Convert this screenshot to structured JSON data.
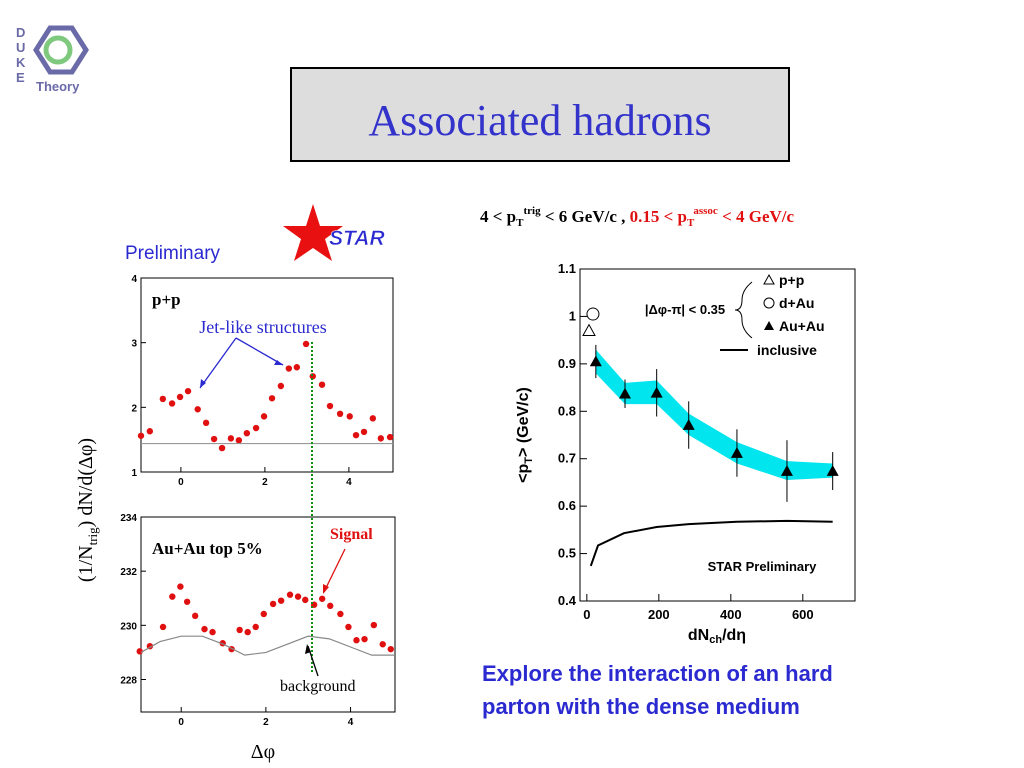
{
  "logo": {
    "letters": [
      "D",
      "U",
      "K",
      "E"
    ],
    "text": "Theory"
  },
  "title": "Associated hadrons",
  "star_label": "STAR",
  "preliminary": "Preliminary",
  "cut_label": {
    "left_main": "4 < p",
    "left_sub": "T",
    "left_sup": "trig",
    "left_rest": " < 6 GeV/c , ",
    "right_main": "0.15 < p",
    "right_sub": "T",
    "right_sup": "assoc",
    "right_rest": " < 4 GeV/c"
  },
  "left_ylabel": {
    "main": "(1/N",
    "sub": "trig",
    "rest": ") dN/d(Δφ)"
  },
  "left_xlabel": "Δφ",
  "conclusion": [
    "Explore the interaction of an hard",
    "parton with the dense medium"
  ],
  "chart_data": [
    {
      "type": "scatter",
      "annotations": [
        "p+p",
        "Jet-like structures"
      ],
      "xlim": [
        -0.95,
        5.05
      ],
      "ylim": [
        1,
        4
      ],
      "xticks": [
        0,
        2,
        4
      ],
      "yticks": [
        1,
        2,
        3,
        4
      ],
      "series": [
        {
          "color": "#e01010",
          "marker": "circle",
          "x": [
            -0.95,
            -0.74,
            -0.43,
            -0.21,
            -0.02,
            0.17,
            0.4,
            0.6,
            0.79,
            0.98,
            1.19,
            1.38,
            1.57,
            1.79,
            1.98,
            2.17,
            2.38,
            2.57,
            2.76,
            2.98,
            3.14,
            3.36,
            3.55,
            3.79,
            4.02,
            4.17,
            4.36,
            4.57,
            4.76,
            4.98
          ],
          "values": [
            1.56,
            1.63,
            2.13,
            2.06,
            2.16,
            2.25,
            1.97,
            1.76,
            1.51,
            1.37,
            1.52,
            1.49,
            1.6,
            1.68,
            1.86,
            2.14,
            2.33,
            2.6,
            2.62,
            2.98,
            2.48,
            2.35,
            2.02,
            1.9,
            1.86,
            1.57,
            1.62,
            1.83,
            1.52,
            1.54
          ]
        },
        {
          "color": "#999999",
          "marker": "line",
          "x": [
            -0.95,
            5.05
          ],
          "values": [
            1.44,
            1.44
          ]
        }
      ]
    },
    {
      "type": "scatter",
      "annotations": [
        "Au+Au top 5%",
        "Signal",
        "background"
      ],
      "xlim": [
        -0.95,
        5.05
      ],
      "ylim": [
        226.8,
        234
      ],
      "xticks": [
        0,
        2,
        4
      ],
      "yticks": [
        228,
        230,
        232,
        234
      ],
      "series": [
        {
          "color": "#e01010",
          "marker": "circle",
          "x": [
            -0.98,
            -0.74,
            -0.43,
            -0.21,
            -0.02,
            0.14,
            0.33,
            0.55,
            0.74,
            0.98,
            1.19,
            1.38,
            1.57,
            1.76,
            1.95,
            2.17,
            2.36,
            2.57,
            2.76,
            2.93,
            3.14,
            3.33,
            3.52,
            3.76,
            3.95,
            4.14,
            4.33,
            4.55,
            4.76,
            4.95
          ],
          "values": [
            229.04,
            229.23,
            229.94,
            231.06,
            231.43,
            230.87,
            230.35,
            229.86,
            229.75,
            229.34,
            229.12,
            229.83,
            229.75,
            229.94,
            230.42,
            230.79,
            230.91,
            231.13,
            231.06,
            230.94,
            230.76,
            230.98,
            230.72,
            230.42,
            229.94,
            229.45,
            229.49,
            230.01,
            229.3,
            229.12
          ]
        },
        {
          "color": "#888888",
          "marker": "line",
          "x": [
            -0.95,
            -0.5,
            0,
            0.5,
            1,
            1.5,
            2,
            2.5,
            3,
            3.5,
            4,
            4.5,
            5.05
          ],
          "values": [
            229.0,
            229.4,
            229.6,
            229.6,
            229.3,
            228.9,
            229.0,
            229.3,
            229.6,
            229.5,
            229.2,
            228.9,
            228.9
          ]
        }
      ]
    },
    {
      "type": "scatter",
      "ylabel": {
        "main": "<p",
        "sub": "T",
        "rest": ">  (GeV/c)"
      },
      "xlabel": {
        "main": "dN",
        "sub": "ch",
        "rest": "/dη"
      },
      "annotations": [
        "|Δφ-π| < 0.35",
        "STAR Preliminary"
      ],
      "xlim": [
        -19,
        745
      ],
      "ylim": [
        0.4,
        1.1
      ],
      "xticks": [
        0,
        200,
        400,
        600
      ],
      "yticks": [
        0.4,
        0.5,
        0.6,
        0.7,
        0.8,
        0.9,
        1,
        1.1
      ],
      "legend": "upper right",
      "band": {
        "color": "#00e5ee",
        "x": [
          25,
          106,
          194,
          283,
          417,
          556,
          683
        ],
        "upper": [
          0.93,
          0.86,
          0.865,
          0.795,
          0.735,
          0.695,
          0.69
        ],
        "lower": [
          0.88,
          0.815,
          0.815,
          0.75,
          0.69,
          0.655,
          0.66
        ]
      },
      "series": [
        {
          "name": "p+p",
          "color": "#000000",
          "marker": "triangle-open",
          "x": [
            6
          ],
          "values": [
            0.97
          ]
        },
        {
          "name": "d+Au",
          "color": "#000000",
          "marker": "circle-open",
          "x": [
            17
          ],
          "values": [
            1.005
          ]
        },
        {
          "name": "Au+Au",
          "color": "#000000",
          "marker": "triangle",
          "x": [
            25,
            106,
            194,
            283,
            417,
            556,
            683
          ],
          "values": [
            0.905,
            0.837,
            0.839,
            0.771,
            0.712,
            0.674,
            0.674
          ],
          "errors": [
            0.035,
            0.03,
            0.05,
            0.05,
            0.05,
            0.065,
            0.04
          ]
        },
        {
          "name": "inclusive",
          "color": "#000000",
          "marker": "line",
          "x": [
            11,
            31,
            103,
            194,
            283,
            417,
            556,
            683
          ],
          "values": [
            0.474,
            0.517,
            0.543,
            0.556,
            0.562,
            0.567,
            0.569,
            0.567
          ]
        }
      ]
    }
  ]
}
